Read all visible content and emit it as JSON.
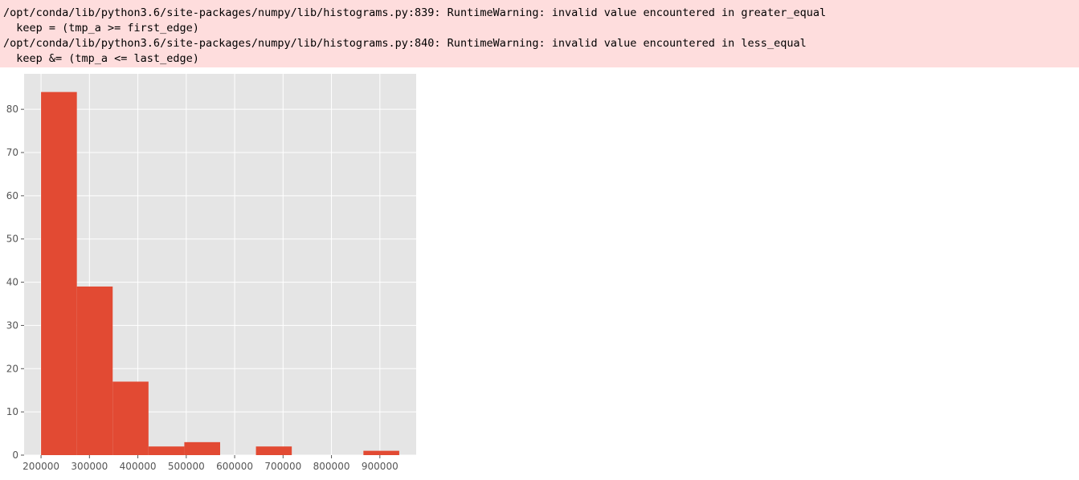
{
  "output": {
    "stderr_lines": [
      "/opt/conda/lib/python3.6/site-packages/numpy/lib/histograms.py:839: RuntimeWarning: invalid value encountered in greater_equal",
      "  keep = (tmp_a >= first_edge)",
      "/opt/conda/lib/python3.6/site-packages/numpy/lib/histograms.py:840: RuntimeWarning: invalid value encountered in less_equal",
      "  keep &= (tmp_a <= last_edge)"
    ],
    "stderr_bg": "#fedddd"
  },
  "chart_data": {
    "type": "bar",
    "style": "ggplot histogram",
    "bins": [
      {
        "start": 200000,
        "end": 274000,
        "count": 84
      },
      {
        "start": 274000,
        "end": 348000,
        "count": 39
      },
      {
        "start": 348000,
        "end": 422000,
        "count": 17
      },
      {
        "start": 422000,
        "end": 496000,
        "count": 2
      },
      {
        "start": 496000,
        "end": 570000,
        "count": 3
      },
      {
        "start": 570000,
        "end": 644000,
        "count": 0
      },
      {
        "start": 644000,
        "end": 718000,
        "count": 2
      },
      {
        "start": 718000,
        "end": 792000,
        "count": 0
      },
      {
        "start": 792000,
        "end": 866000,
        "count": 0
      },
      {
        "start": 866000,
        "end": 940000,
        "count": 1
      }
    ],
    "xlim": [
      165000,
      975000
    ],
    "ylim": [
      0,
      88.2
    ],
    "xticks": [
      200000,
      300000,
      400000,
      500000,
      600000,
      700000,
      800000,
      900000
    ],
    "xtick_labels": [
      "200000",
      "300000",
      "400000",
      "500000",
      "600000",
      "700000",
      "800000",
      "900000"
    ],
    "yticks": [
      0,
      10,
      20,
      30,
      40,
      50,
      60,
      70,
      80
    ],
    "ytick_labels": [
      "0",
      "10",
      "20",
      "30",
      "40",
      "50",
      "60",
      "70",
      "80"
    ],
    "title": "",
    "xlabel": "",
    "ylabel": "",
    "grid": true,
    "bar_color": "#e24a33",
    "axes_bg": "#e5e5e5",
    "grid_color": "#ffffff"
  }
}
